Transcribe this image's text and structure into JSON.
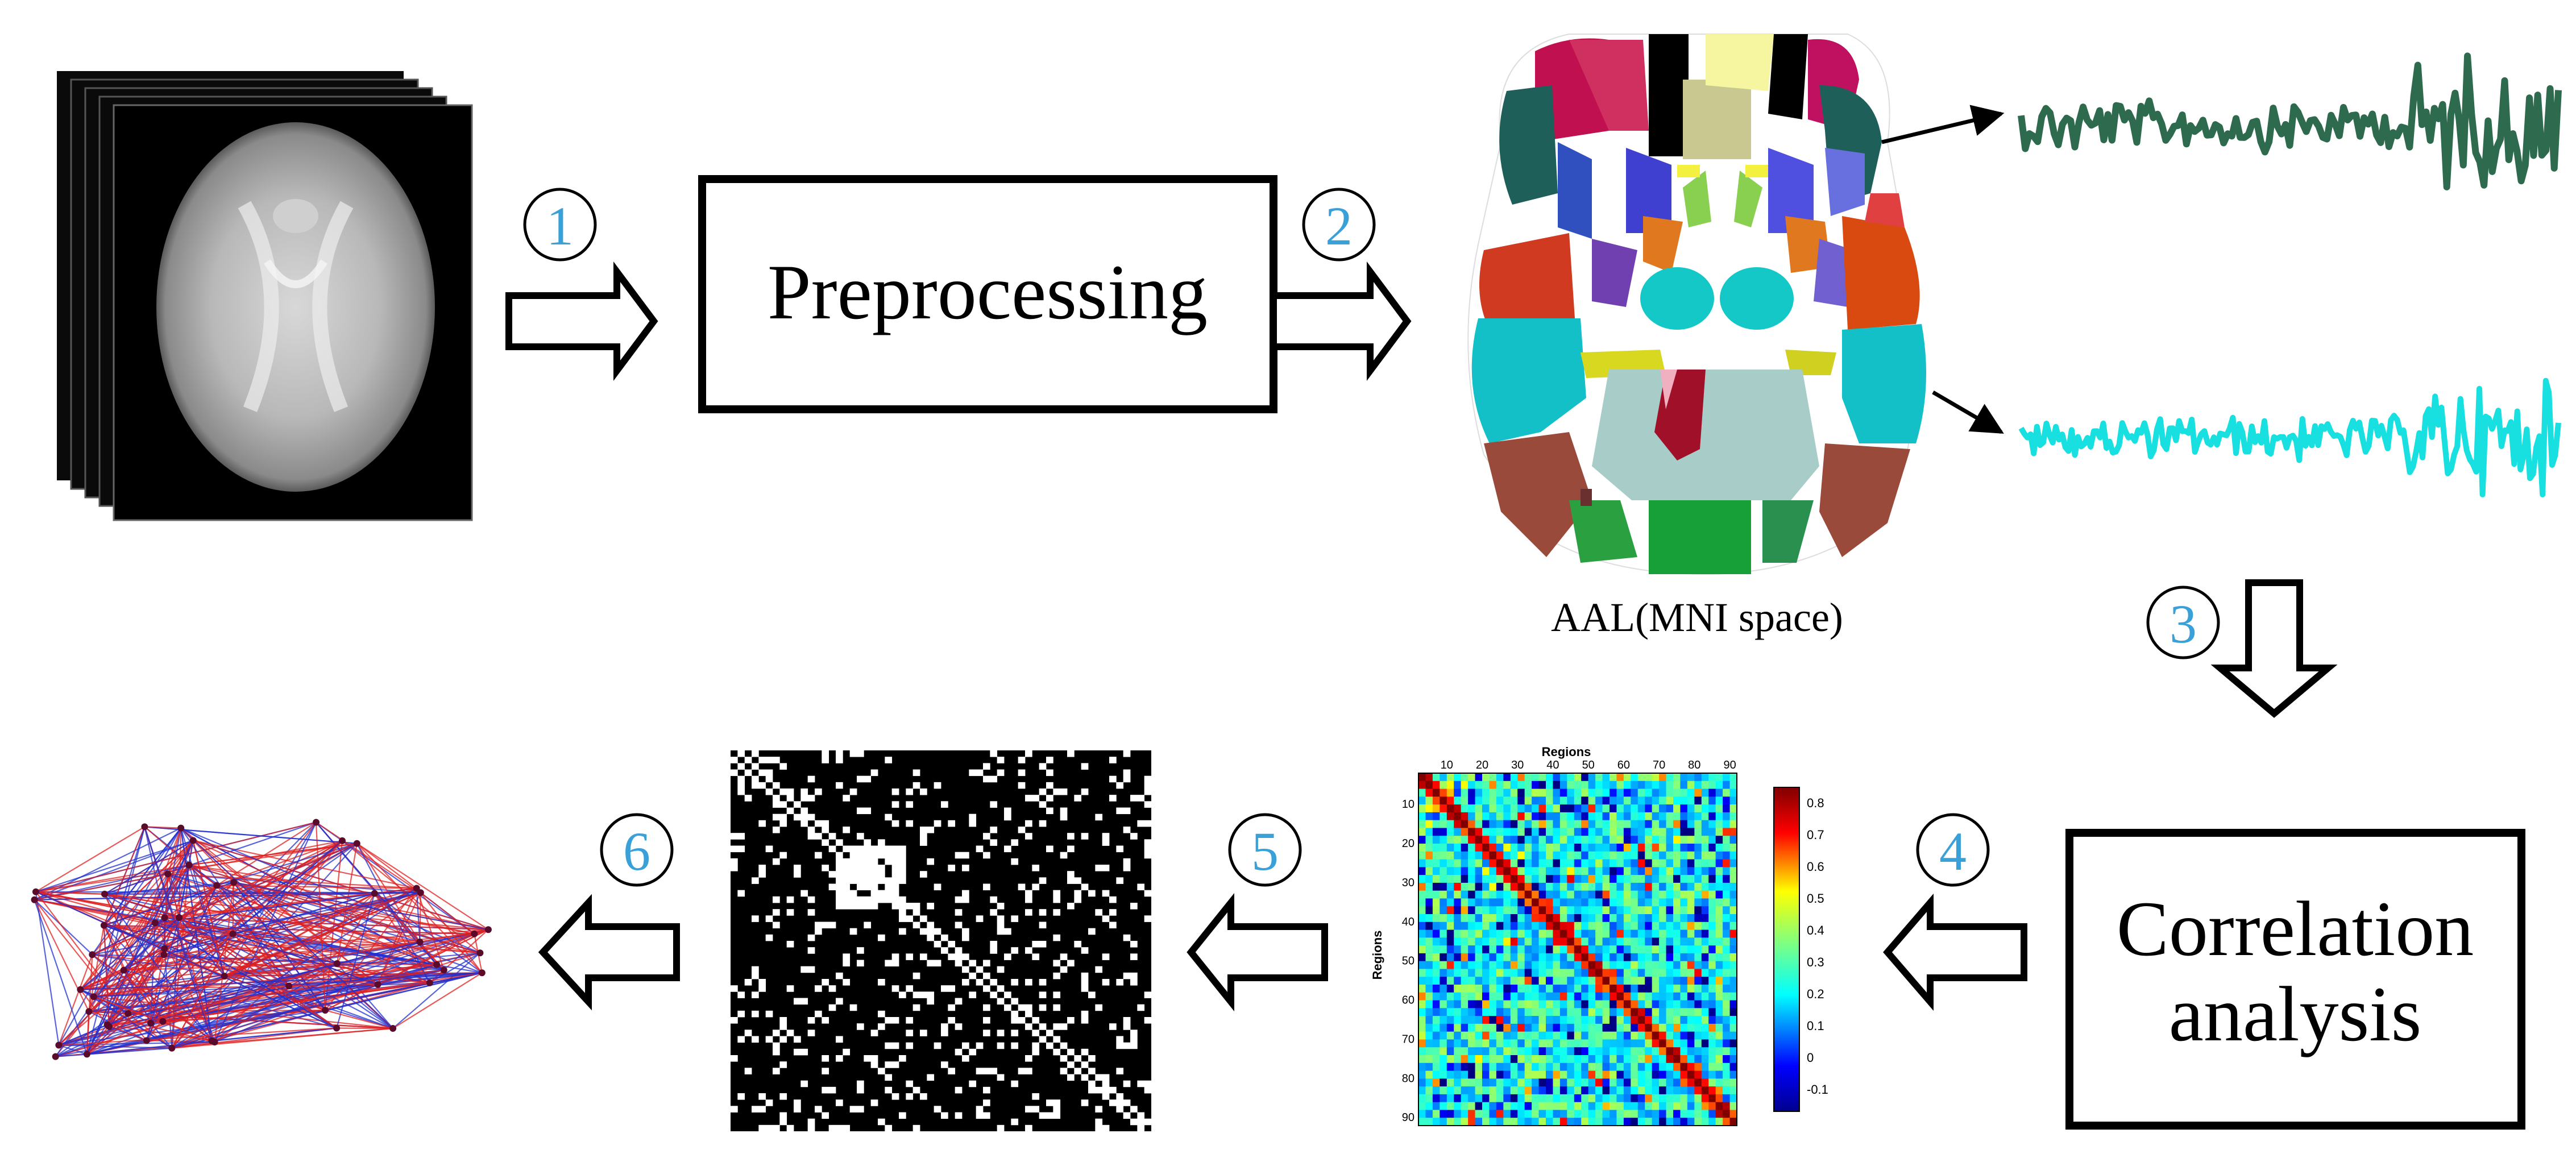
{
  "steps": {
    "s1": "1",
    "s2": "2",
    "s3": "3",
    "s4": "4",
    "s5": "5",
    "s6": "6"
  },
  "boxes": {
    "preprocessing": "Preprocessing",
    "correlation_line1": "Correlation",
    "correlation_line2": "analysis"
  },
  "atlas_caption": "AAL(MNI space)",
  "matrix": {
    "title": "Regions",
    "ylabel": "Regions",
    "x_ticks": [
      "10",
      "20",
      "30",
      "40",
      "50",
      "60",
      "70",
      "80",
      "90"
    ],
    "y_ticks": [
      "10",
      "20",
      "30",
      "40",
      "50",
      "60",
      "70",
      "80",
      "90"
    ],
    "colorbar_ticks": [
      "0.8",
      "0.7",
      "0.6",
      "0.5",
      "0.4",
      "0.3",
      "0.2",
      "0.1",
      "0",
      "-0.1"
    ]
  },
  "colors": {
    "step_number": "#3aa0d8",
    "green_signal": "#2e6b4e",
    "cyan_signal": "#19e0e0",
    "edge_red": "#e02020",
    "edge_blue": "#2030d0"
  },
  "icons": {
    "arrow": "hollow-block-arrow",
    "pointer": "thin-arrow"
  }
}
